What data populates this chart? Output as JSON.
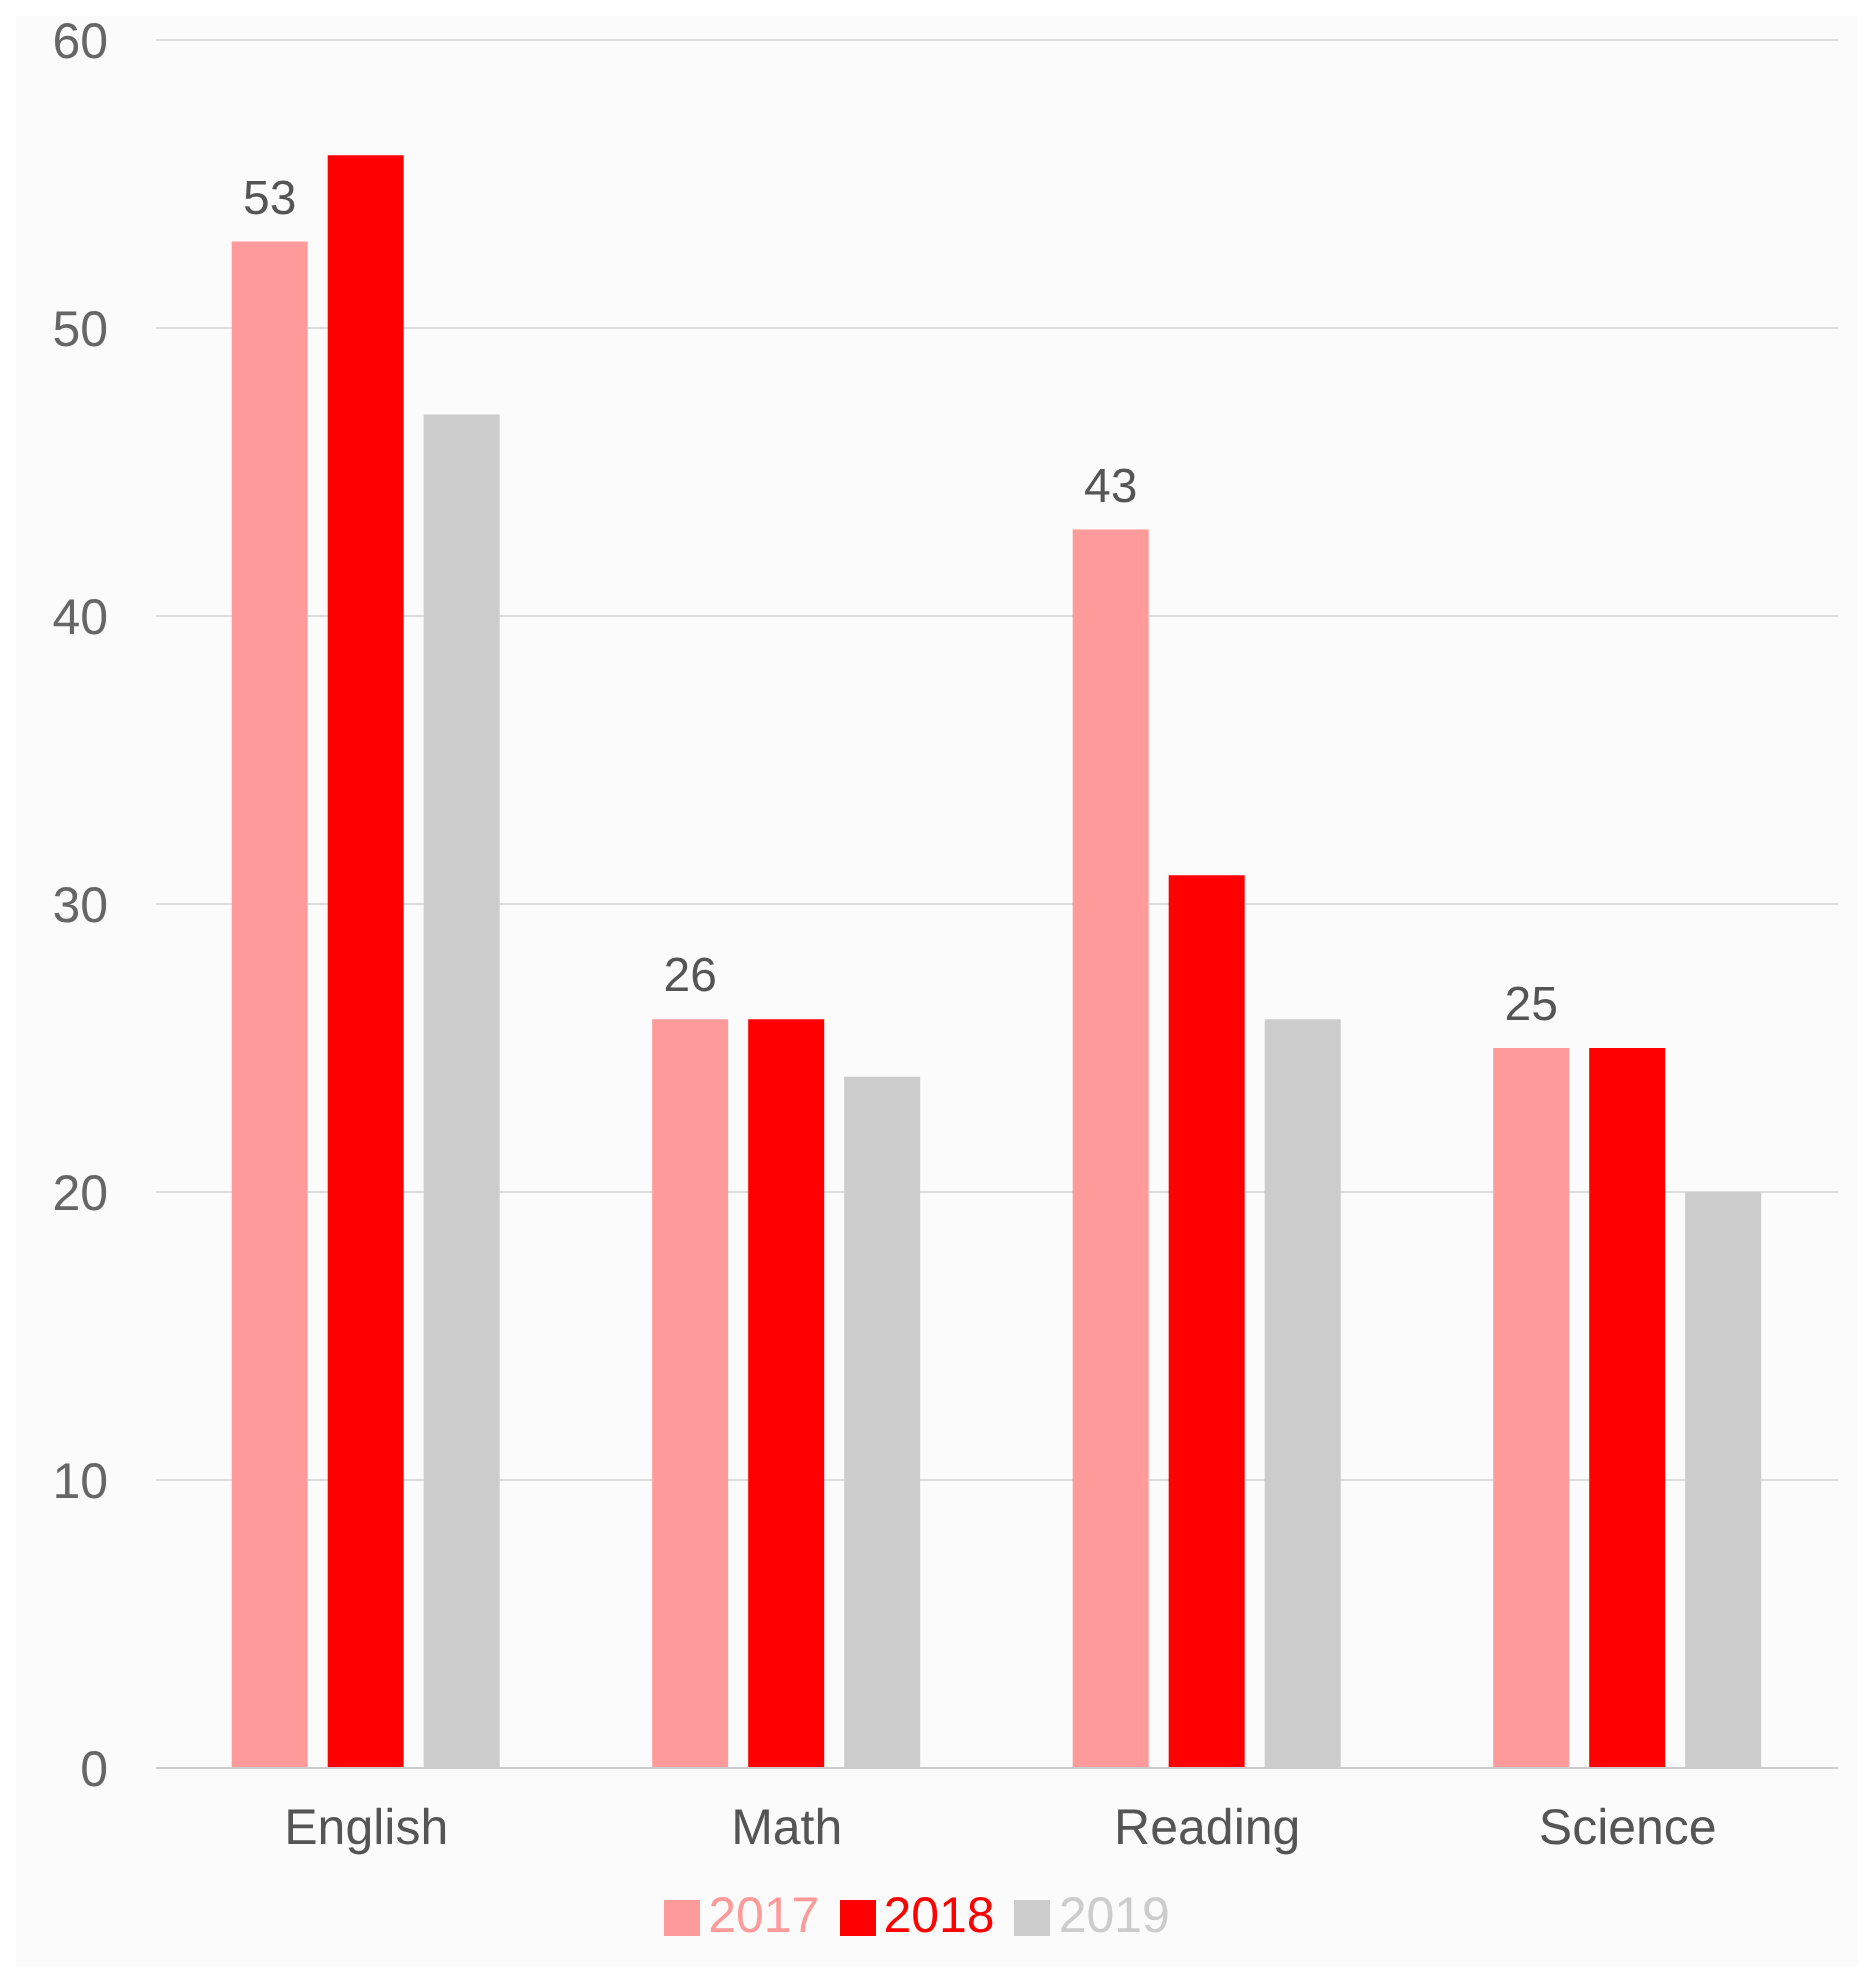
{
  "chart_data": {
    "type": "bar",
    "categories": [
      "English",
      "Math",
      "Reading",
      "Science"
    ],
    "series": [
      {
        "name": "2017",
        "color": "#ff9a9a",
        "values": [
          53,
          26,
          43,
          25
        ],
        "value_labels": [
          "53",
          "26",
          "43",
          "25"
        ]
      },
      {
        "name": "2018",
        "color": "#ff0000",
        "values": [
          56,
          26,
          31,
          25
        ]
      },
      {
        "name": "2019",
        "color": "#cccccc",
        "values": [
          47,
          24,
          26,
          20
        ]
      }
    ],
    "ylim": [
      0,
      60
    ],
    "yticks": [
      0,
      10,
      20,
      30,
      40,
      50,
      60
    ],
    "grid": "y",
    "legend": "bottom"
  }
}
